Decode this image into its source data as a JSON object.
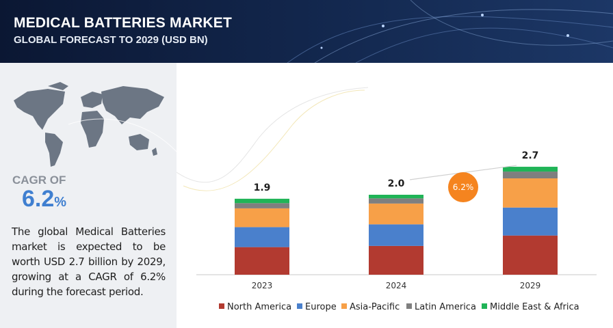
{
  "header": {
    "title": "MEDICAL BATTERIES MARKET",
    "subtitle": "GLOBAL FORECAST TO 2029 (USD BN)"
  },
  "panel": {
    "cagr_label": "CAGR OF",
    "cagr_value": "6.2",
    "cagr_unit": "%",
    "description": "The global Medical Batteries market is expected to be worth USD 2.7 billion by 2029, growing at a CAGR of 6.2% during the forecast period."
  },
  "chart_data": {
    "type": "stacked_bar",
    "categories": [
      "2023",
      "2024",
      "2029"
    ],
    "series": [
      {
        "name": "North America",
        "color": "#b23a30",
        "values": [
          0.69,
          0.72,
          0.98
        ]
      },
      {
        "name": "Europe",
        "color": "#4a80cc",
        "values": [
          0.5,
          0.54,
          0.7
        ]
      },
      {
        "name": "Asia-Pacific",
        "color": "#f7a048",
        "values": [
          0.47,
          0.52,
          0.73
        ]
      },
      {
        "name": "Latin America",
        "color": "#7f7f7f",
        "values": [
          0.13,
          0.13,
          0.17
        ]
      },
      {
        "name": "Middle East & Africa",
        "color": "#20b457",
        "values": [
          0.11,
          0.09,
          0.12
        ]
      }
    ],
    "totals": [
      1.9,
      2.0,
      2.7
    ],
    "value_labels": [
      "1.9",
      "2.0",
      "2.7"
    ],
    "annotation": "6.2%",
    "annotation_color": "#f5841f",
    "legend": "bottom"
  }
}
